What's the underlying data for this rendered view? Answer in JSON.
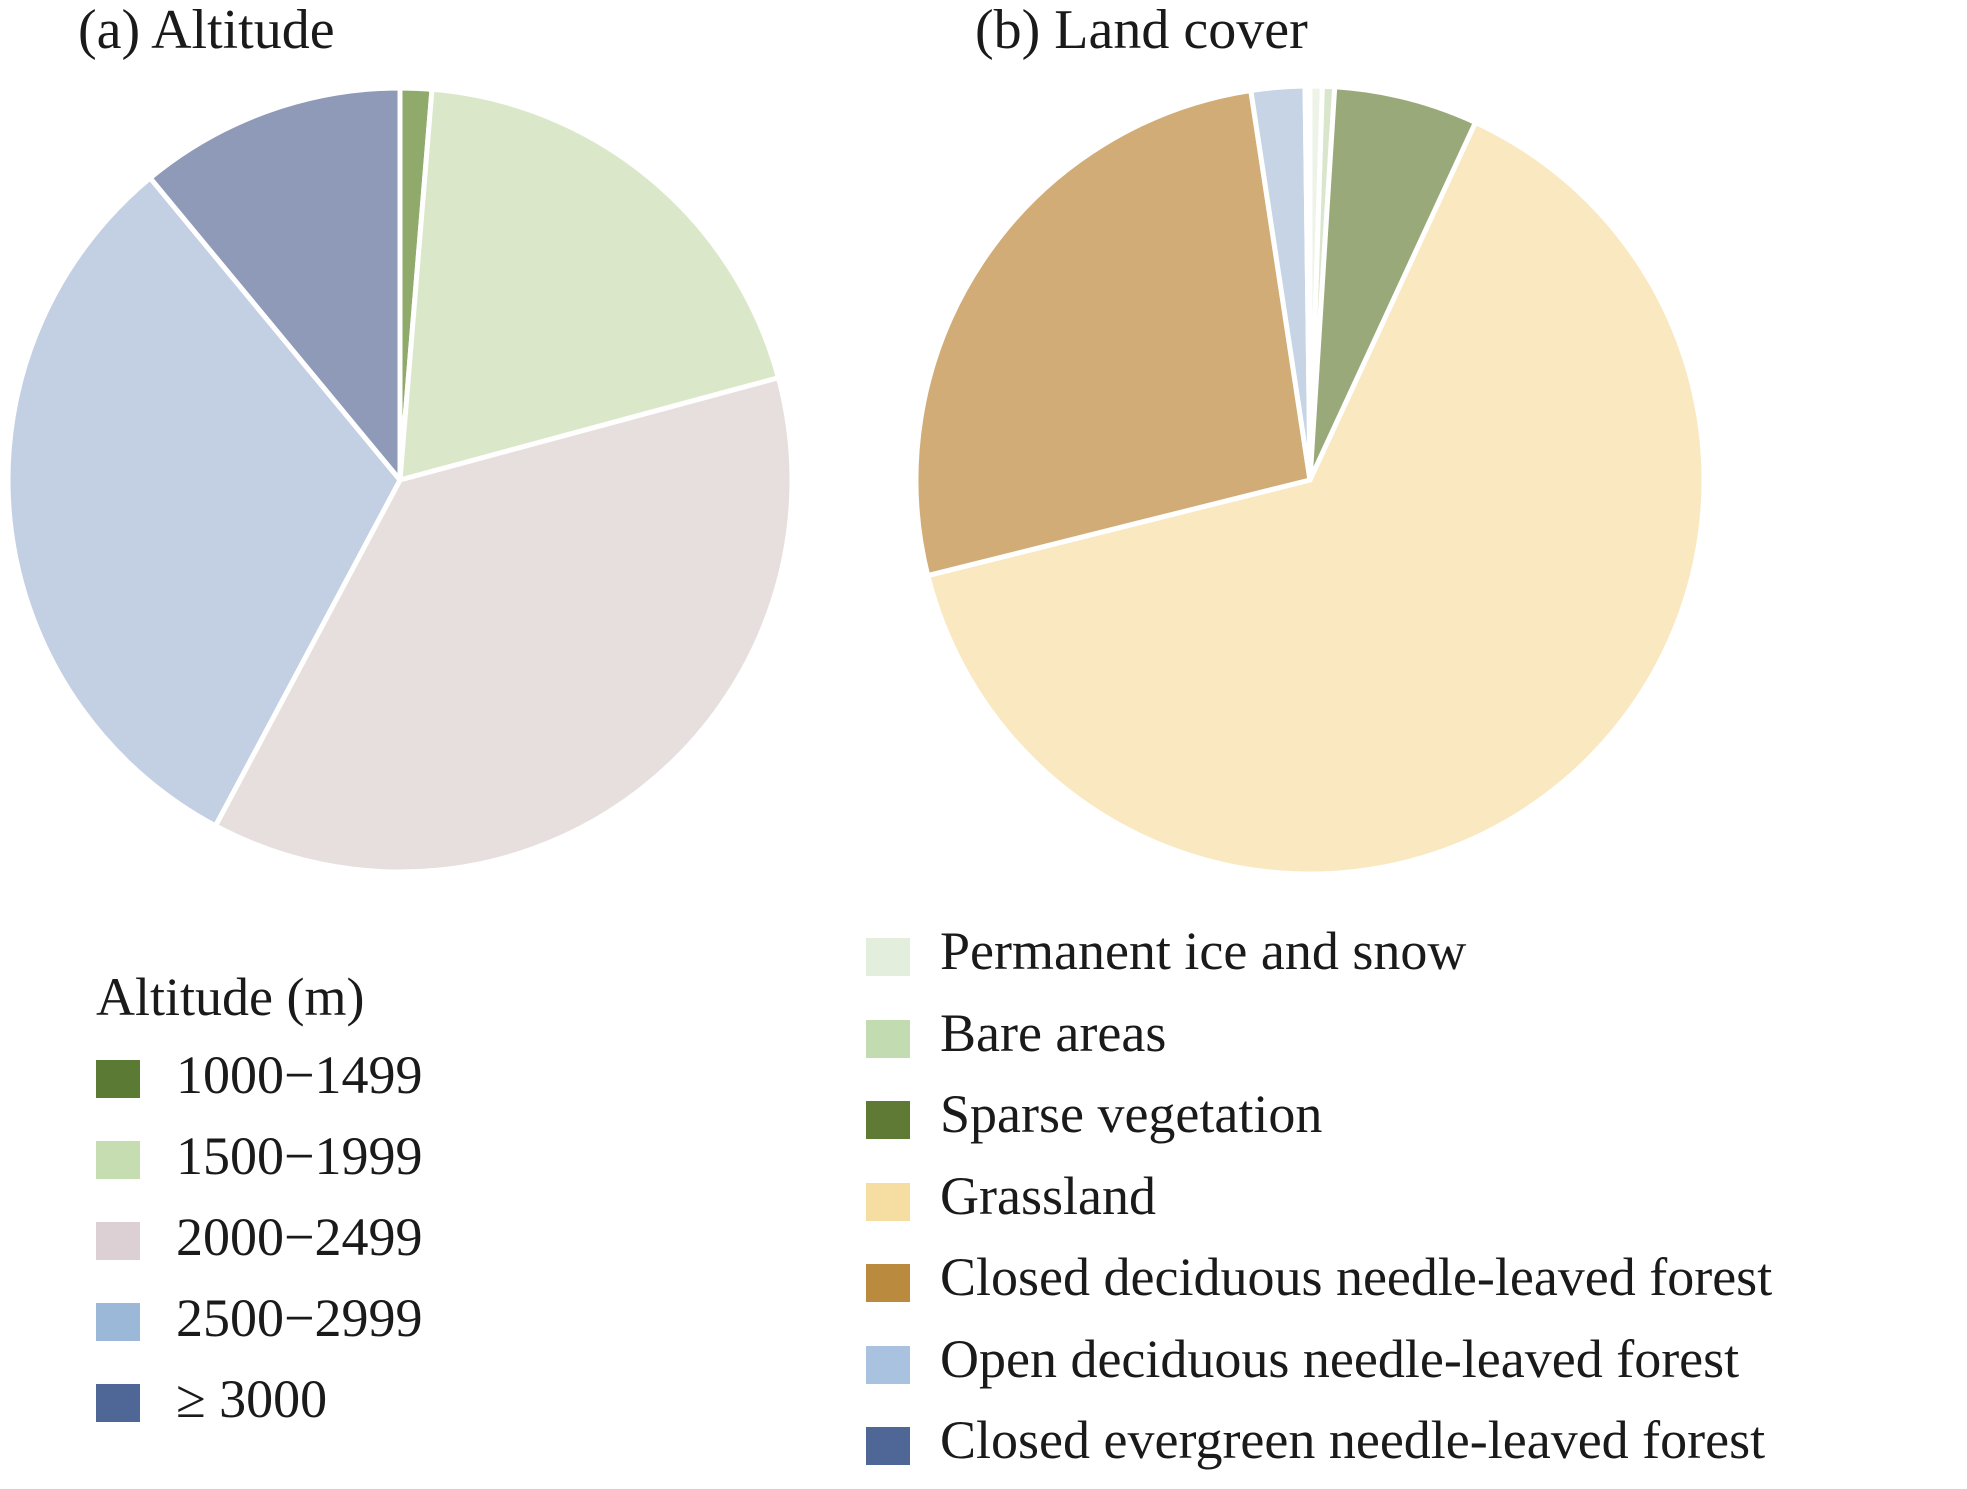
{
  "chart_data": [
    {
      "type": "pie",
      "title": "(a) Altitude",
      "legend_title": "Altitude (m)",
      "legend_placement": "bottom-left",
      "slices": [
        {
          "label": "1000−1499",
          "value": 1.3,
          "color": "#8faa6a",
          "legend_color": "#5b7a34"
        },
        {
          "label": "1500−1999",
          "value": 19.5,
          "color": "#dbe7c9",
          "legend_color": "#c6ddb2"
        },
        {
          "label": "2000−2499",
          "value": 37.0,
          "color": "#e6dfdd",
          "legend_color": "#ddd0d4"
        },
        {
          "label": "2500−2999",
          "value": 31.2,
          "color": "#c3d0e3",
          "legend_color": "#9cb8d8"
        },
        {
          "label": "≥ 3000",
          "value": 11.0,
          "color": "#8f9ab9",
          "legend_color": "#4f6796"
        }
      ]
    },
    {
      "type": "pie",
      "title": "(b)  Land cover",
      "legend_title": "",
      "legend_placement": "bottom-right",
      "slices": [
        {
          "label": "Permanent ice and snow",
          "value": 0.5,
          "color": "#eef3e7",
          "legend_color": "#e4eedc"
        },
        {
          "label": "Bare areas",
          "value": 0.5,
          "color": "#d9e6cc",
          "legend_color": "#c3dbb0"
        },
        {
          "label": "Sparse vegetation",
          "value": 5.9,
          "color": "#9aa97a",
          "legend_color": "#5f7a35"
        },
        {
          "label": "Grassland",
          "value": 64.2,
          "color": "#fae8c0",
          "legend_color": "#f6dea3"
        },
        {
          "label": "Closed deciduous needle-leaved forest",
          "value": 26.5,
          "color": "#d1ac76",
          "legend_color": "#ba8a3e"
        },
        {
          "label": "Open deciduous needle-leaved forest",
          "value": 2.2,
          "color": "#c7d4e6",
          "legend_color": "#a9c2e0"
        },
        {
          "label": "Closed evergreen needle-leaved forest",
          "value": 0.2,
          "color": "#dde4ef",
          "legend_color": "#4f6796"
        }
      ]
    }
  ]
}
